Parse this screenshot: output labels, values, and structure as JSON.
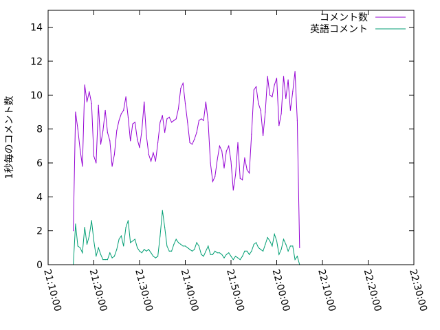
{
  "chart_data": {
    "type": "line",
    "title": "",
    "xlabel": "",
    "ylabel": "1秒毎のコメント数",
    "xlim": [
      "21:10:00",
      "22:30:00"
    ],
    "ylim": [
      0,
      15
    ],
    "x_ticks": [
      "21:10:00",
      "21:20:00",
      "21:30:00",
      "21:40:00",
      "21:50:00",
      "22:00:00",
      "22:10:00",
      "22:20:00",
      "22:30:00"
    ],
    "y_ticks": [
      "0",
      "2",
      "4",
      "6",
      "8",
      "10",
      "12",
      "14"
    ],
    "grid": false,
    "legend_position": "top-right",
    "series": [
      {
        "name": "コメント数",
        "color": "#9400d3",
        "points": [
          [
            "21:15:30",
            2.0
          ],
          [
            "21:16:00",
            9.0
          ],
          [
            "21:16:30",
            8.0
          ],
          [
            "21:17:00",
            6.8
          ],
          [
            "21:17:30",
            5.8
          ],
          [
            "21:18:00",
            10.6
          ],
          [
            "21:18:30",
            9.6
          ],
          [
            "21:19:00",
            10.2
          ],
          [
            "21:19:30",
            9.5
          ],
          [
            "21:20:00",
            6.4
          ],
          [
            "21:20:30",
            6.0
          ],
          [
            "21:21:00",
            9.4
          ],
          [
            "21:21:30",
            7.1
          ],
          [
            "21:22:00",
            7.9
          ],
          [
            "21:22:30",
            9.1
          ],
          [
            "21:23:00",
            7.8
          ],
          [
            "21:23:30",
            7.3
          ],
          [
            "21:24:00",
            5.8
          ],
          [
            "21:24:30",
            6.5
          ],
          [
            "21:25:00",
            7.9
          ],
          [
            "21:25:30",
            8.5
          ],
          [
            "21:26:00",
            8.9
          ],
          [
            "21:26:30",
            9.1
          ],
          [
            "21:27:00",
            9.9
          ],
          [
            "21:27:30",
            8.7
          ],
          [
            "21:28:00",
            7.3
          ],
          [
            "21:28:30",
            8.3
          ],
          [
            "21:29:00",
            8.4
          ],
          [
            "21:29:30",
            7.4
          ],
          [
            "21:30:00",
            6.9
          ],
          [
            "21:30:30",
            7.9
          ],
          [
            "21:31:00",
            9.6
          ],
          [
            "21:31:30",
            7.6
          ],
          [
            "21:32:00",
            6.5
          ],
          [
            "21:32:30",
            6.1
          ],
          [
            "21:33:00",
            6.6
          ],
          [
            "21:33:30",
            6.1
          ],
          [
            "21:34:00",
            7.2
          ],
          [
            "21:34:30",
            8.4
          ],
          [
            "21:35:00",
            8.8
          ],
          [
            "21:35:30",
            7.8
          ],
          [
            "21:36:00",
            8.6
          ],
          [
            "21:36:30",
            8.7
          ],
          [
            "21:37:00",
            8.4
          ],
          [
            "21:37:30",
            8.5
          ],
          [
            "21:38:00",
            8.6
          ],
          [
            "21:38:30",
            9.2
          ],
          [
            "21:39:00",
            10.4
          ],
          [
            "21:39:30",
            10.7
          ],
          [
            "21:40:00",
            9.5
          ],
          [
            "21:40:30",
            8.4
          ],
          [
            "21:41:00",
            7.2
          ],
          [
            "21:41:30",
            7.1
          ],
          [
            "21:42:00",
            7.4
          ],
          [
            "21:42:30",
            7.8
          ],
          [
            "21:43:00",
            8.5
          ],
          [
            "21:43:30",
            8.6
          ],
          [
            "21:44:00",
            8.5
          ],
          [
            "21:44:30",
            9.6
          ],
          [
            "21:45:00",
            8.4
          ],
          [
            "21:45:30",
            6.0
          ],
          [
            "21:46:00",
            4.9
          ],
          [
            "21:46:30",
            5.2
          ],
          [
            "21:47:00",
            6.2
          ],
          [
            "21:47:30",
            7.0
          ],
          [
            "21:48:00",
            6.7
          ],
          [
            "21:48:30",
            5.7
          ],
          [
            "21:49:00",
            6.7
          ],
          [
            "21:49:30",
            7.0
          ],
          [
            "21:50:00",
            6.1
          ],
          [
            "21:50:30",
            4.4
          ],
          [
            "21:51:00",
            5.3
          ],
          [
            "21:51:30",
            7.2
          ],
          [
            "21:52:00",
            5.1
          ],
          [
            "21:52:30",
            5.0
          ],
          [
            "21:53:00",
            6.3
          ],
          [
            "21:53:30",
            5.6
          ],
          [
            "21:54:00",
            5.4
          ],
          [
            "21:54:30",
            7.7
          ],
          [
            "21:55:00",
            10.3
          ],
          [
            "21:55:30",
            10.5
          ],
          [
            "21:56:00",
            9.5
          ],
          [
            "21:56:30",
            9.1
          ],
          [
            "21:57:00",
            7.6
          ],
          [
            "21:57:30",
            9.0
          ],
          [
            "21:58:00",
            11.1
          ],
          [
            "21:58:30",
            10.0
          ],
          [
            "21:59:00",
            9.9
          ],
          [
            "21:59:30",
            10.6
          ],
          [
            "22:00:00",
            11.0
          ],
          [
            "22:00:30",
            8.2
          ],
          [
            "22:01:00",
            8.9
          ],
          [
            "22:01:30",
            11.1
          ],
          [
            "22:02:00",
            9.8
          ],
          [
            "22:02:30",
            10.9
          ],
          [
            "22:03:00",
            9.1
          ],
          [
            "22:03:30",
            10.2
          ],
          [
            "22:04:00",
            11.4
          ],
          [
            "22:04:30",
            8.5
          ],
          [
            "22:05:00",
            1.0
          ]
        ]
      },
      {
        "name": "英語コメント",
        "color": "#009e73",
        "points": [
          [
            "21:15:30",
            0.0
          ],
          [
            "21:16:00",
            2.4
          ],
          [
            "21:16:30",
            1.1
          ],
          [
            "21:17:00",
            1.0
          ],
          [
            "21:17:30",
            0.7
          ],
          [
            "21:18:00",
            2.2
          ],
          [
            "21:18:30",
            1.2
          ],
          [
            "21:19:00",
            1.7
          ],
          [
            "21:19:30",
            2.6
          ],
          [
            "21:20:00",
            1.4
          ],
          [
            "21:20:30",
            0.5
          ],
          [
            "21:21:00",
            1.0
          ],
          [
            "21:21:30",
            0.6
          ],
          [
            "21:22:00",
            0.3
          ],
          [
            "21:22:30",
            0.3
          ],
          [
            "21:23:00",
            0.3
          ],
          [
            "21:23:30",
            0.7
          ],
          [
            "21:24:00",
            0.4
          ],
          [
            "21:24:30",
            0.5
          ],
          [
            "21:25:00",
            0.9
          ],
          [
            "21:25:30",
            1.5
          ],
          [
            "21:26:00",
            1.7
          ],
          [
            "21:26:30",
            1.1
          ],
          [
            "21:27:00",
            2.2
          ],
          [
            "21:27:30",
            2.6
          ],
          [
            "21:28:00",
            1.3
          ],
          [
            "21:28:30",
            1.4
          ],
          [
            "21:29:00",
            1.5
          ],
          [
            "21:29:30",
            1.0
          ],
          [
            "21:30:00",
            0.8
          ],
          [
            "21:30:30",
            0.7
          ],
          [
            "21:31:00",
            0.9
          ],
          [
            "21:31:30",
            0.8
          ],
          [
            "21:32:00",
            0.9
          ],
          [
            "21:32:30",
            0.7
          ],
          [
            "21:33:00",
            0.5
          ],
          [
            "21:33:30",
            0.4
          ],
          [
            "21:34:00",
            0.5
          ],
          [
            "21:34:30",
            1.7
          ],
          [
            "21:35:00",
            3.2
          ],
          [
            "21:35:30",
            2.2
          ],
          [
            "21:36:00",
            1.1
          ],
          [
            "21:36:30",
            0.8
          ],
          [
            "21:37:00",
            0.8
          ],
          [
            "21:37:30",
            1.2
          ],
          [
            "21:38:00",
            1.5
          ],
          [
            "21:38:30",
            1.3
          ],
          [
            "21:39:00",
            1.2
          ],
          [
            "21:39:30",
            1.1
          ],
          [
            "21:40:00",
            1.1
          ],
          [
            "21:40:30",
            1.0
          ],
          [
            "21:41:00",
            0.9
          ],
          [
            "21:41:30",
            0.8
          ],
          [
            "21:42:00",
            0.9
          ],
          [
            "21:42:30",
            1.3
          ],
          [
            "21:43:00",
            1.1
          ],
          [
            "21:43:30",
            0.6
          ],
          [
            "21:44:00",
            0.5
          ],
          [
            "21:44:30",
            0.8
          ],
          [
            "21:45:00",
            1.1
          ],
          [
            "21:45:30",
            0.6
          ],
          [
            "21:46:00",
            0.6
          ],
          [
            "21:46:30",
            0.8
          ],
          [
            "21:47:00",
            0.7
          ],
          [
            "21:47:30",
            0.7
          ],
          [
            "21:48:00",
            0.6
          ],
          [
            "21:48:30",
            0.4
          ],
          [
            "21:49:00",
            0.6
          ],
          [
            "21:49:30",
            0.7
          ],
          [
            "21:50:00",
            0.5
          ],
          [
            "21:50:30",
            0.3
          ],
          [
            "21:51:00",
            0.5
          ],
          [
            "21:51:30",
            0.4
          ],
          [
            "21:52:00",
            0.3
          ],
          [
            "21:52:30",
            0.5
          ],
          [
            "21:53:00",
            0.8
          ],
          [
            "21:53:30",
            0.8
          ],
          [
            "21:54:00",
            0.6
          ],
          [
            "21:54:30",
            0.8
          ],
          [
            "21:55:00",
            1.2
          ],
          [
            "21:55:30",
            1.3
          ],
          [
            "21:56:00",
            1.0
          ],
          [
            "21:56:30",
            0.9
          ],
          [
            "21:57:00",
            0.8
          ],
          [
            "21:57:30",
            1.2
          ],
          [
            "21:58:00",
            1.6
          ],
          [
            "21:58:30",
            1.4
          ],
          [
            "21:59:00",
            1.1
          ],
          [
            "21:59:30",
            1.8
          ],
          [
            "22:00:00",
            1.4
          ],
          [
            "22:00:30",
            0.6
          ],
          [
            "22:01:00",
            0.9
          ],
          [
            "22:01:30",
            1.5
          ],
          [
            "22:02:00",
            1.2
          ],
          [
            "22:02:30",
            0.8
          ],
          [
            "22:03:00",
            1.1
          ],
          [
            "22:03:30",
            1.1
          ],
          [
            "22:04:00",
            0.3
          ],
          [
            "22:04:30",
            0.5
          ],
          [
            "22:05:00",
            0.0
          ]
        ]
      }
    ]
  }
}
